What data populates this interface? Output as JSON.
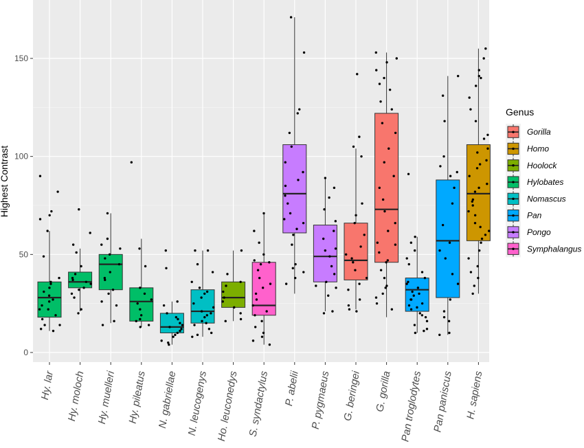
{
  "chart_data": {
    "type": "box",
    "ylabel": "Highest Contrast",
    "xlabel": "",
    "ylim": [
      -3,
      175
    ],
    "yticks": [
      0,
      50,
      100,
      150
    ],
    "grid": true,
    "legend_title": "Genus",
    "legend_position": "right",
    "genera": [
      {
        "name": "Gorilla",
        "color": "#F8766D"
      },
      {
        "name": "Homo",
        "color": "#CD9600"
      },
      {
        "name": "Hoolock",
        "color": "#7CAE00"
      },
      {
        "name": "Hylobates",
        "color": "#00BE67"
      },
      {
        "name": "Nomascus",
        "color": "#00BFC4"
      },
      {
        "name": "Pan",
        "color": "#00A9FF"
      },
      {
        "name": "Pongo",
        "color": "#C77CFF"
      },
      {
        "name": "Symphalangus",
        "color": "#FF61CC"
      }
    ],
    "categories": [
      "Hy. lar",
      "Hy. moloch",
      "Hy. muelleri",
      "Hy. pileatus",
      "N. gabriellae",
      "N. leucogenys",
      "Ho. leuconedys",
      "S. syndactylus",
      "P. abelii",
      "P. pygmaeus",
      "G. beringei",
      "G. gorilla",
      "Pan troglodytes",
      "Pan paniscus",
      "H. sapiens"
    ],
    "boxes": [
      {
        "category": "Hy. lar",
        "genus": "Hylobates",
        "min": 11,
        "q1": 18,
        "median": 28,
        "q3": 36,
        "max": 62
      },
      {
        "category": "Hy. moloch",
        "genus": "Hylobates",
        "min": 21,
        "q1": 33,
        "median": 36,
        "q3": 41,
        "max": 53
      },
      {
        "category": "Hy. muelleri",
        "genus": "Hylobates",
        "min": 15,
        "q1": 32,
        "median": 45,
        "q3": 50,
        "max": 71
      },
      {
        "category": "Hy. pileatus",
        "genus": "Hylobates",
        "min": 13,
        "q1": 16,
        "median": 26,
        "q3": 33,
        "max": 58
      },
      {
        "category": "N. gabriellae",
        "genus": "Nomascus",
        "min": 4,
        "q1": 10,
        "median": 13,
        "q3": 20,
        "max": 26
      },
      {
        "category": "N. leucogenys",
        "genus": "Nomascus",
        "min": 8,
        "q1": 15,
        "median": 21,
        "q3": 32,
        "max": 52
      },
      {
        "category": "Ho. leuconedys",
        "genus": "Hoolock",
        "min": 16,
        "q1": 23,
        "median": 28,
        "q3": 36,
        "max": 52
      },
      {
        "category": "S. syndactylus",
        "genus": "Symphalangus",
        "min": 4,
        "q1": 19,
        "median": 24,
        "q3": 46,
        "max": 71
      },
      {
        "category": "P. abelii",
        "genus": "Pongo",
        "min": 30,
        "q1": 61,
        "median": 81,
        "q3": 106,
        "max": 171
      },
      {
        "category": "P. pygmaeus",
        "genus": "Pongo",
        "min": 21,
        "q1": 36,
        "median": 49,
        "q3": 65,
        "max": 89
      },
      {
        "category": "G. beringei",
        "genus": "Gorilla",
        "min": 22,
        "q1": 37,
        "median": 47,
        "q3": 66,
        "max": 104
      },
      {
        "category": "G. gorilla",
        "genus": "Gorilla",
        "min": 18,
        "q1": 46,
        "median": 73,
        "q3": 122,
        "max": 153
      },
      {
        "category": "Pan troglodytes",
        "genus": "Pan",
        "min": 10,
        "q1": 21,
        "median": 32,
        "q3": 38,
        "max": 59
      },
      {
        "category": "Pan paniscus",
        "genus": "Pan",
        "min": 9,
        "q1": 28,
        "median": 57,
        "q3": 88,
        "max": 141
      },
      {
        "category": "H. sapiens",
        "genus": "Homo",
        "min": 30,
        "q1": 57,
        "median": 81,
        "q3": 106,
        "max": 155
      }
    ],
    "points": [
      [
        26,
        35,
        12,
        31,
        22,
        70,
        68,
        82,
        72,
        62,
        14,
        19,
        27,
        90,
        33,
        49,
        11,
        24,
        36,
        29,
        17,
        22,
        38,
        14
      ],
      [
        30,
        73,
        61,
        55,
        20,
        22,
        33,
        40,
        37,
        35,
        32,
        28,
        44,
        51,
        38,
        36
      ],
      [
        71,
        58,
        55,
        53,
        48,
        45,
        41,
        37,
        32,
        30,
        24,
        16,
        14,
        38,
        50,
        26
      ],
      [
        97,
        53,
        44,
        30,
        27,
        25,
        22,
        19,
        17,
        14,
        13,
        33,
        16
      ],
      [
        43,
        26,
        24,
        20,
        17,
        15,
        14,
        12,
        11,
        10,
        9,
        8,
        6,
        5,
        4,
        52,
        13,
        18
      ],
      [
        52,
        45,
        41,
        36,
        33,
        30,
        28,
        25,
        23,
        21,
        20,
        18,
        16,
        14,
        12,
        10,
        9,
        8,
        52,
        31,
        19,
        15
      ],
      [
        52,
        40,
        36,
        34,
        31,
        28,
        26,
        23,
        20,
        17,
        16
      ],
      [
        71,
        62,
        56,
        50,
        47,
        45,
        42,
        38,
        35,
        30,
        27,
        24,
        21,
        19,
        16,
        13,
        10,
        8,
        6,
        4,
        33,
        46
      ],
      [
        171,
        153,
        124,
        122,
        112,
        105,
        97,
        92,
        85,
        80,
        76,
        71,
        68,
        63,
        60,
        55,
        45,
        41,
        38,
        43,
        35,
        66,
        88
      ],
      [
        89,
        84,
        79,
        73,
        67,
        62,
        58,
        52,
        49,
        44,
        40,
        36,
        33,
        29,
        21,
        20,
        34,
        53
      ],
      [
        142,
        110,
        105,
        100,
        76,
        70,
        66,
        60,
        54,
        50,
        46,
        42,
        38,
        35,
        32,
        27,
        24,
        22,
        21,
        48
      ],
      [
        153,
        150,
        148,
        144,
        140,
        137,
        134,
        128,
        124,
        117,
        112,
        104,
        97,
        90,
        84,
        78,
        72,
        66,
        62,
        56,
        51,
        46,
        42,
        38,
        34,
        30,
        28,
        25,
        22,
        33,
        47,
        55
      ],
      [
        91,
        59,
        56,
        52,
        48,
        45,
        41,
        38,
        35,
        33,
        31,
        29,
        27,
        25,
        23,
        22,
        20,
        18,
        16,
        14,
        12,
        11,
        10,
        36,
        27,
        24,
        19,
        30
      ],
      [
        141,
        131,
        118,
        100,
        95,
        92,
        90,
        84,
        76,
        65,
        56,
        52,
        40,
        35,
        27,
        21,
        18,
        16,
        10,
        9,
        48
      ],
      [
        155,
        150,
        144,
        141,
        140,
        136,
        130,
        124,
        118,
        111,
        109,
        104,
        102,
        98,
        94,
        90,
        86,
        82,
        78,
        75,
        72,
        70,
        66,
        62,
        60,
        56,
        52,
        48,
        44,
        41,
        38,
        34,
        30,
        84,
        96,
        77,
        64,
        58
      ]
    ]
  }
}
